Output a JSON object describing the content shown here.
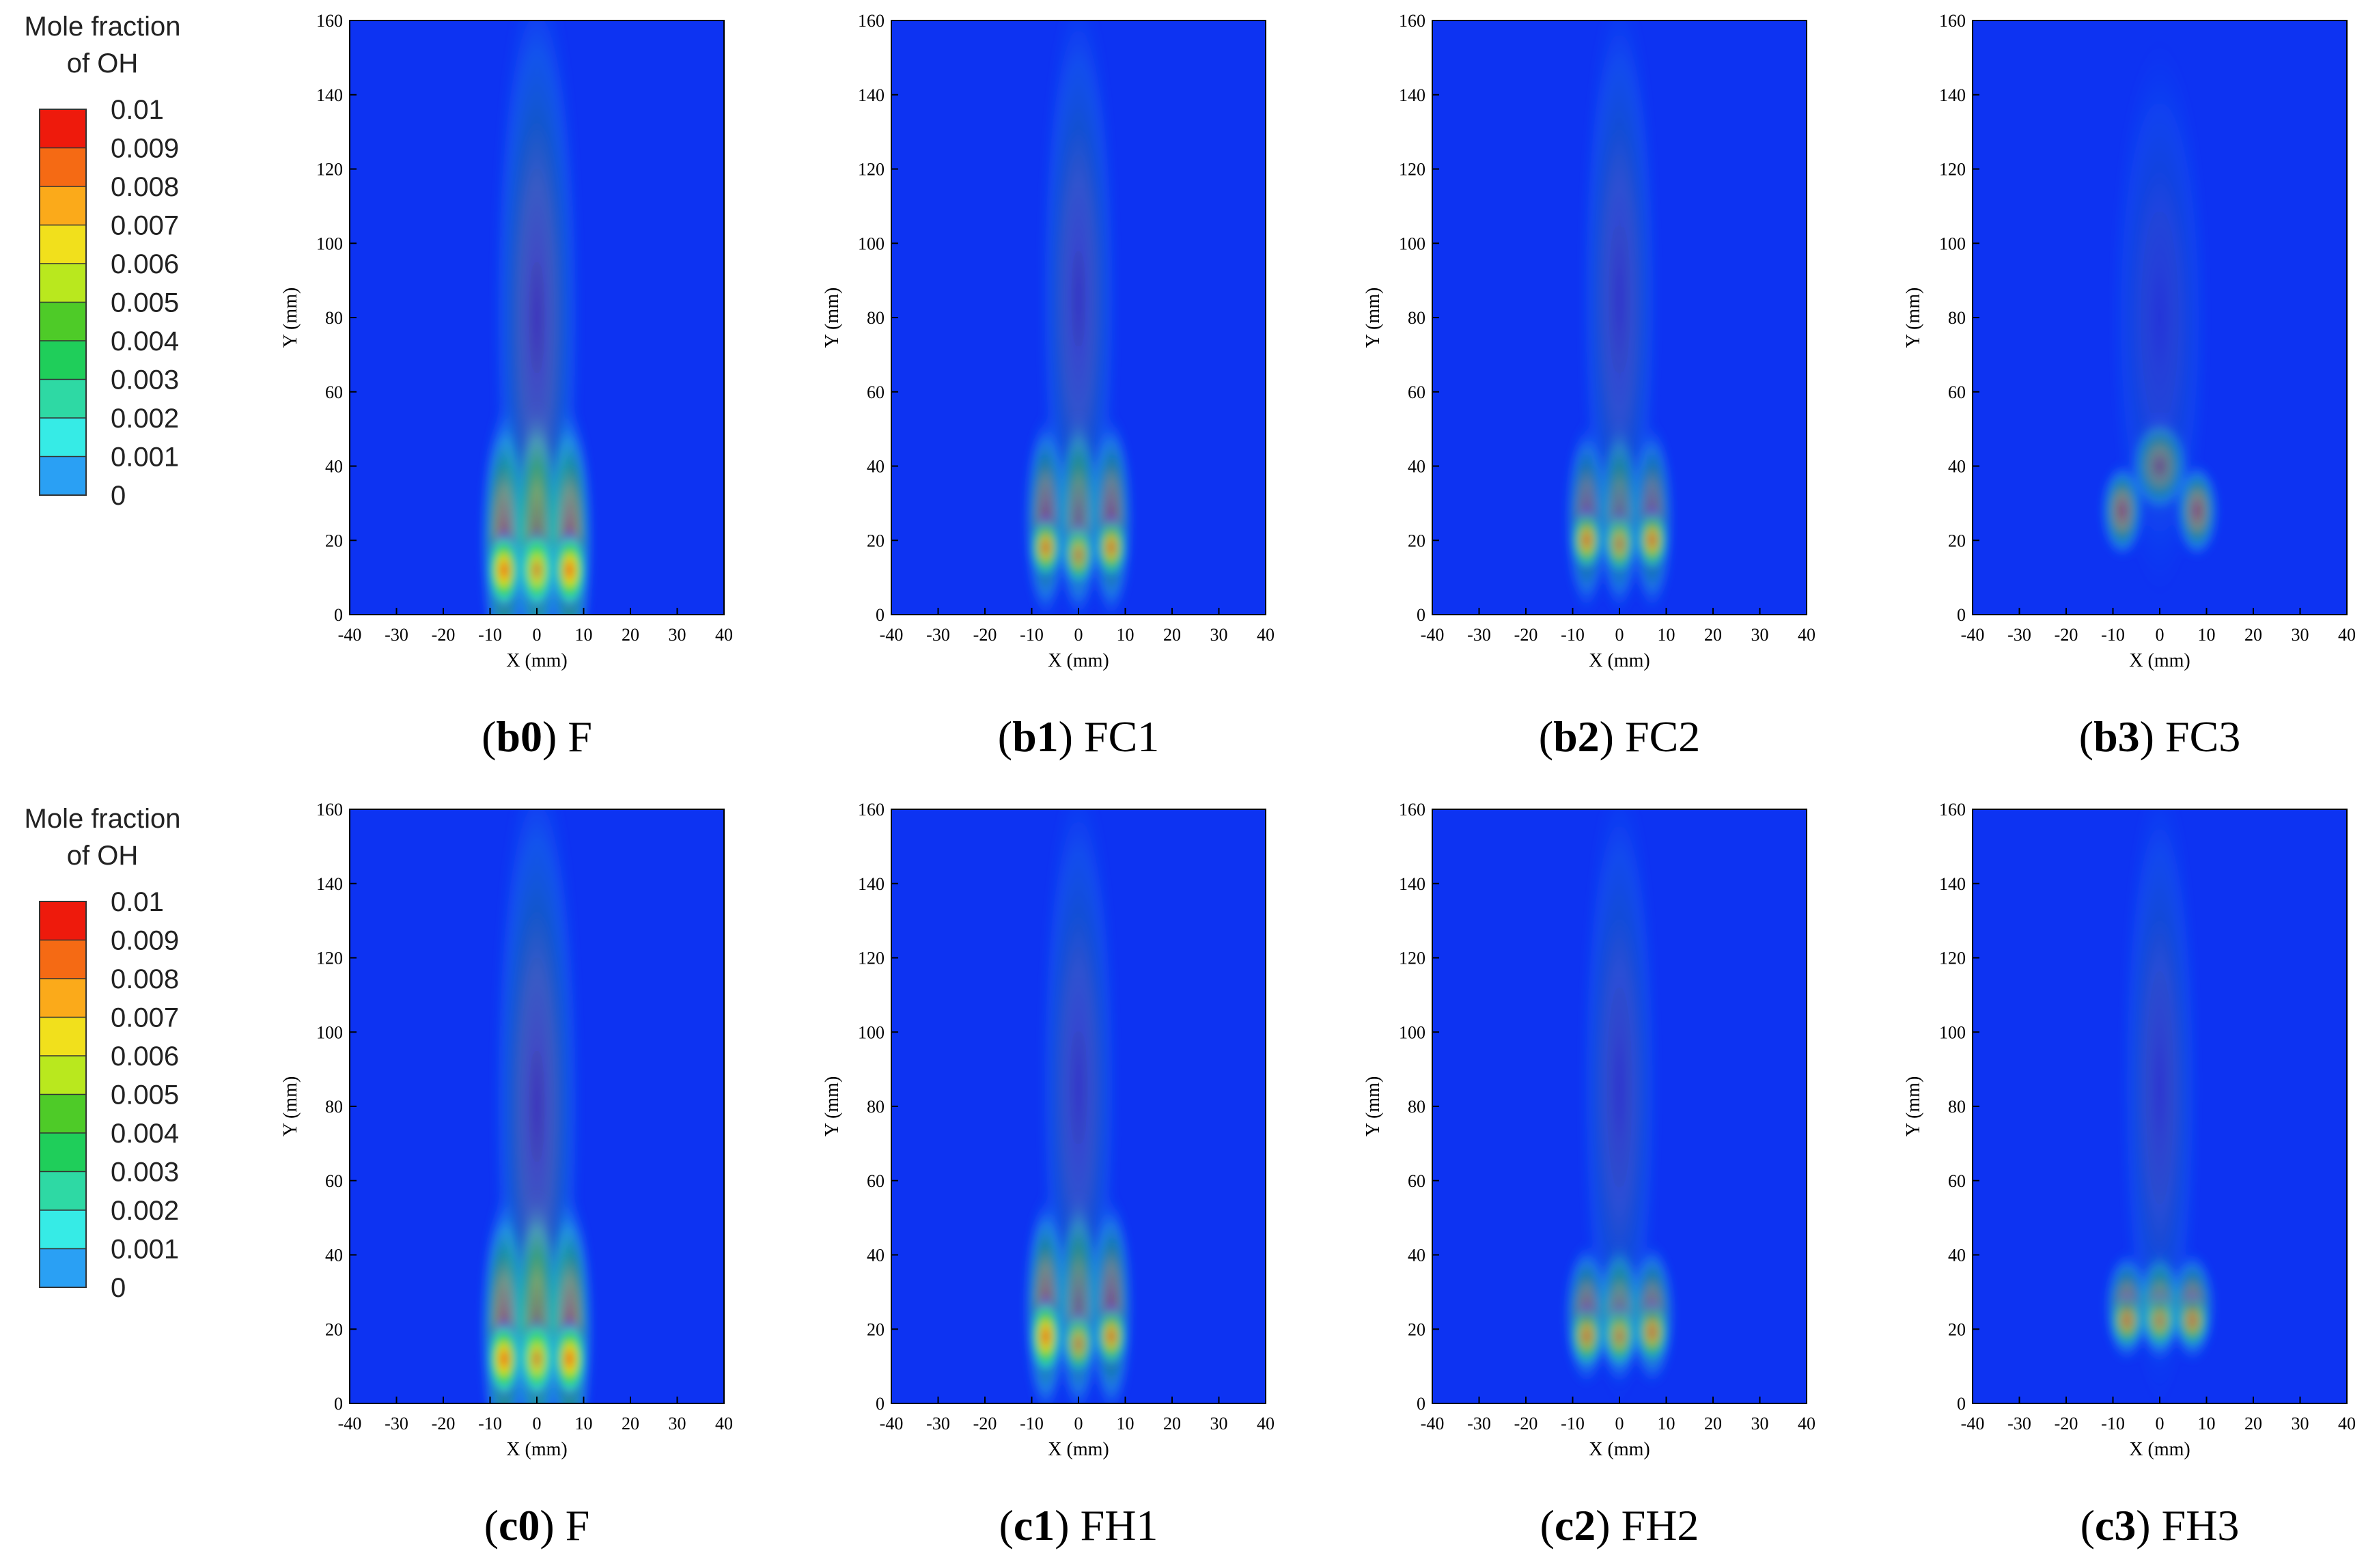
{
  "colorbar": {
    "title_line1": "Mole fraction",
    "title_line2": "of OH",
    "levels": [
      "0.01",
      "0.009",
      "0.008",
      "0.007",
      "0.006",
      "0.005",
      "0.004",
      "0.003",
      "0.002",
      "0.001",
      "0"
    ],
    "band_colors": [
      "#ee1a0c",
      "#f56a14",
      "#fbaa1a",
      "#f1e01c",
      "#b9e81e",
      "#4ecb28",
      "#1fce5a",
      "#2ed9a4",
      "#36ebe6",
      "#2aa0f4",
      "#1a3af2"
    ]
  },
  "colors": {
    "background_blue": "#0d33f2",
    "axis": "#000000"
  },
  "chart_data": [
    {
      "id": "b0",
      "type": "heatmap",
      "caption_bold": "b0",
      "caption_rest": ") F",
      "xlabel": "X (mm)",
      "ylabel": "Y (mm)",
      "xlim": [
        -40,
        40
      ],
      "ylim": [
        0,
        160
      ],
      "xticks": [
        "-40",
        "-30",
        "-20",
        "-10",
        "0",
        "10",
        "20",
        "30",
        "40"
      ],
      "yticks": [
        "0",
        "20",
        "40",
        "60",
        "80",
        "100",
        "120",
        "140",
        "160"
      ],
      "blobs": [
        {
          "x": -7,
          "y": 20,
          "sx": 2.4,
          "sy": 17,
          "a": 0.55
        },
        {
          "x": 0,
          "y": 20,
          "sx": 2.4,
          "sy": 17,
          "a": 0.55
        },
        {
          "x": 7,
          "y": 20,
          "sx": 2.4,
          "sy": 17,
          "a": 0.55
        },
        {
          "x": -7,
          "y": 12,
          "sx": 1.8,
          "sy": 5,
          "a": 1.0
        },
        {
          "x": 0,
          "y": 12,
          "sx": 1.8,
          "sy": 5,
          "a": 1.0
        },
        {
          "x": 7,
          "y": 12,
          "sx": 1.8,
          "sy": 5,
          "a": 1.0
        },
        {
          "x": 0,
          "y": 80,
          "sx": 4.5,
          "sy": 45,
          "a": 0.22
        }
      ]
    },
    {
      "id": "b1",
      "type": "heatmap",
      "caption_bold": "b1",
      "caption_rest": ") FC1",
      "xlabel": "X (mm)",
      "ylabel": "Y (mm)",
      "xlim": [
        -40,
        40
      ],
      "ylim": [
        0,
        160
      ],
      "xticks": [
        "-40",
        "-30",
        "-20",
        "-10",
        "0",
        "10",
        "20",
        "30",
        "40"
      ],
      "yticks": [
        "0",
        "20",
        "40",
        "60",
        "80",
        "100",
        "120",
        "140",
        "160"
      ],
      "blobs": [
        {
          "x": -7,
          "y": 26,
          "sx": 2.2,
          "sy": 13,
          "a": 0.45
        },
        {
          "x": 0,
          "y": 26,
          "sx": 2.2,
          "sy": 13,
          "a": 0.45
        },
        {
          "x": 7,
          "y": 26,
          "sx": 2.2,
          "sy": 13,
          "a": 0.45
        },
        {
          "x": -7,
          "y": 18,
          "sx": 1.7,
          "sy": 4,
          "a": 0.72
        },
        {
          "x": 0,
          "y": 16,
          "sx": 1.7,
          "sy": 4,
          "a": 0.66
        },
        {
          "x": 7,
          "y": 18,
          "sx": 1.7,
          "sy": 4,
          "a": 0.7
        },
        {
          "x": 0,
          "y": 85,
          "sx": 4,
          "sy": 40,
          "a": 0.18
        }
      ]
    },
    {
      "id": "b2",
      "type": "heatmap",
      "caption_bold": "b2",
      "caption_rest": ") FC2",
      "xlabel": "X (mm)",
      "ylabel": "Y (mm)",
      "xlim": [
        -40,
        40
      ],
      "ylim": [
        0,
        160
      ],
      "xticks": [
        "-40",
        "-30",
        "-20",
        "-10",
        "0",
        "10",
        "20",
        "30",
        "40"
      ],
      "yticks": [
        "0",
        "20",
        "40",
        "60",
        "80",
        "100",
        "120",
        "140",
        "160"
      ],
      "blobs": [
        {
          "x": -7,
          "y": 26,
          "sx": 2.2,
          "sy": 12,
          "a": 0.4
        },
        {
          "x": 0,
          "y": 26,
          "sx": 2.2,
          "sy": 12,
          "a": 0.4
        },
        {
          "x": 7,
          "y": 26,
          "sx": 2.2,
          "sy": 12,
          "a": 0.4
        },
        {
          "x": -7,
          "y": 20,
          "sx": 1.7,
          "sy": 4,
          "a": 0.7
        },
        {
          "x": 0,
          "y": 19,
          "sx": 1.7,
          "sy": 4,
          "a": 0.62
        },
        {
          "x": 7,
          "y": 20,
          "sx": 1.7,
          "sy": 4,
          "a": 0.7
        },
        {
          "x": 0,
          "y": 85,
          "sx": 4,
          "sy": 40,
          "a": 0.16
        }
      ]
    },
    {
      "id": "b3",
      "type": "heatmap",
      "caption_bold": "b3",
      "caption_rest": ") FC3",
      "xlabel": "X (mm)",
      "ylabel": "Y (mm)",
      "xlim": [
        -40,
        40
      ],
      "ylim": [
        0,
        160
      ],
      "xticks": [
        "-40",
        "-30",
        "-20",
        "-10",
        "0",
        "10",
        "20",
        "30",
        "40"
      ],
      "yticks": [
        "0",
        "20",
        "40",
        "60",
        "80",
        "100",
        "120",
        "140",
        "160"
      ],
      "blobs": [
        {
          "x": -8,
          "y": 28,
          "sx": 2.2,
          "sy": 6,
          "a": 0.5
        },
        {
          "x": 0,
          "y": 40,
          "sx": 3,
          "sy": 6,
          "a": 0.42
        },
        {
          "x": 8,
          "y": 28,
          "sx": 2.2,
          "sy": 6,
          "a": 0.5
        },
        {
          "x": 0,
          "y": 80,
          "sx": 5,
          "sy": 35,
          "a": 0.1
        }
      ]
    },
    {
      "id": "c0",
      "type": "heatmap",
      "caption_bold": "c0",
      "caption_rest": ") F",
      "xlabel": "X (mm)",
      "ylabel": "Y (mm)",
      "xlim": [
        -40,
        40
      ],
      "ylim": [
        0,
        160
      ],
      "xticks": [
        "-40",
        "-30",
        "-20",
        "-10",
        "0",
        "10",
        "20",
        "30",
        "40"
      ],
      "yticks": [
        "0",
        "20",
        "40",
        "60",
        "80",
        "100",
        "120",
        "140",
        "160"
      ],
      "blobs": [
        {
          "x": -7,
          "y": 20,
          "sx": 2.4,
          "sy": 17,
          "a": 0.55
        },
        {
          "x": 0,
          "y": 20,
          "sx": 2.4,
          "sy": 17,
          "a": 0.55
        },
        {
          "x": 7,
          "y": 20,
          "sx": 2.4,
          "sy": 17,
          "a": 0.55
        },
        {
          "x": -7,
          "y": 12,
          "sx": 1.8,
          "sy": 5,
          "a": 1.0
        },
        {
          "x": 0,
          "y": 12,
          "sx": 1.8,
          "sy": 5,
          "a": 1.0
        },
        {
          "x": 7,
          "y": 12,
          "sx": 1.8,
          "sy": 5,
          "a": 1.0
        },
        {
          "x": 0,
          "y": 80,
          "sx": 4.5,
          "sy": 45,
          "a": 0.22
        }
      ]
    },
    {
      "id": "c1",
      "type": "heatmap",
      "caption_bold": "c1",
      "caption_rest": ") FH1",
      "xlabel": "X (mm)",
      "ylabel": "Y (mm)",
      "xlim": [
        -40,
        40
      ],
      "ylim": [
        0,
        160
      ],
      "xticks": [
        "-40",
        "-30",
        "-20",
        "-10",
        "0",
        "10",
        "20",
        "30",
        "40"
      ],
      "yticks": [
        "0",
        "20",
        "40",
        "60",
        "80",
        "100",
        "120",
        "140",
        "160"
      ],
      "blobs": [
        {
          "x": -7,
          "y": 26,
          "sx": 2.2,
          "sy": 14,
          "a": 0.5
        },
        {
          "x": 0,
          "y": 26,
          "sx": 2.2,
          "sy": 14,
          "a": 0.45
        },
        {
          "x": 7,
          "y": 26,
          "sx": 2.2,
          "sy": 14,
          "a": 0.45
        },
        {
          "x": -7,
          "y": 18,
          "sx": 1.7,
          "sy": 5,
          "a": 0.9
        },
        {
          "x": 0,
          "y": 16,
          "sx": 1.7,
          "sy": 4,
          "a": 0.66
        },
        {
          "x": 7,
          "y": 18,
          "sx": 1.7,
          "sy": 4,
          "a": 0.72
        },
        {
          "x": 0,
          "y": 85,
          "sx": 4,
          "sy": 40,
          "a": 0.17
        }
      ]
    },
    {
      "id": "c2",
      "type": "heatmap",
      "caption_bold": "c2",
      "caption_rest": ") FH2",
      "xlabel": "X (mm)",
      "ylabel": "Y (mm)",
      "xlim": [
        -40,
        40
      ],
      "ylim": [
        0,
        160
      ],
      "xticks": [
        "-40",
        "-30",
        "-20",
        "-10",
        "0",
        "10",
        "20",
        "30",
        "40"
      ],
      "yticks": [
        "0",
        "20",
        "40",
        "60",
        "80",
        "100",
        "120",
        "140",
        "160"
      ],
      "blobs": [
        {
          "x": -7,
          "y": 24,
          "sx": 2.3,
          "sy": 9,
          "a": 0.45
        },
        {
          "x": 0,
          "y": 24,
          "sx": 2.3,
          "sy": 9,
          "a": 0.45
        },
        {
          "x": 7,
          "y": 24,
          "sx": 2.3,
          "sy": 9,
          "a": 0.45
        },
        {
          "x": -7,
          "y": 18,
          "sx": 1.8,
          "sy": 4,
          "a": 0.58
        },
        {
          "x": 0,
          "y": 18,
          "sx": 1.8,
          "sy": 4,
          "a": 0.58
        },
        {
          "x": 7,
          "y": 19,
          "sx": 1.8,
          "sy": 4,
          "a": 0.58
        },
        {
          "x": 0,
          "y": 85,
          "sx": 4,
          "sy": 40,
          "a": 0.15
        }
      ]
    },
    {
      "id": "c3",
      "type": "heatmap",
      "caption_bold": "c3",
      "caption_rest": ") FH3",
      "xlabel": "X (mm)",
      "ylabel": "Y (mm)",
      "xlim": [
        -40,
        40
      ],
      "ylim": [
        0,
        160
      ],
      "xticks": [
        "-40",
        "-30",
        "-20",
        "-10",
        "0",
        "10",
        "20",
        "30",
        "40"
      ],
      "yticks": [
        "0",
        "20",
        "40",
        "60",
        "80",
        "100",
        "120",
        "140",
        "160"
      ],
      "blobs": [
        {
          "x": -7,
          "y": 26,
          "sx": 2.3,
          "sy": 7,
          "a": 0.45
        },
        {
          "x": 0,
          "y": 26,
          "sx": 2.3,
          "sy": 7,
          "a": 0.45
        },
        {
          "x": 7,
          "y": 26,
          "sx": 2.3,
          "sy": 7,
          "a": 0.45
        },
        {
          "x": -7,
          "y": 22,
          "sx": 1.8,
          "sy": 3.5,
          "a": 0.5
        },
        {
          "x": 0,
          "y": 22,
          "sx": 1.8,
          "sy": 3.5,
          "a": 0.5
        },
        {
          "x": 7,
          "y": 22,
          "sx": 1.8,
          "sy": 3.5,
          "a": 0.5
        },
        {
          "x": 0,
          "y": 85,
          "sx": 4,
          "sy": 40,
          "a": 0.14
        }
      ]
    }
  ]
}
